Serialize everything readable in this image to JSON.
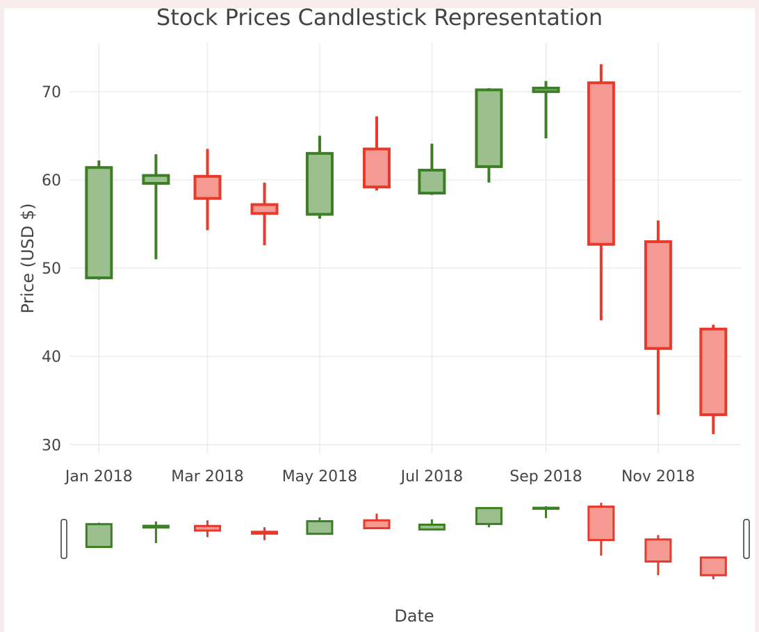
{
  "chart_data": {
    "type": "candlestick",
    "title": "Stock Prices Candlestick Representation",
    "xlabel": "Date",
    "ylabel": "Price (USD $)",
    "ylim": [
      29,
      75.5
    ],
    "yticks": [
      30,
      40,
      50,
      60,
      70
    ],
    "xlim": [
      "2017-12-16",
      "2018-12-16"
    ],
    "xticks": [
      {
        "date": "2018-01-01",
        "label": "Jan 2018"
      },
      {
        "date": "2018-03-01",
        "label": "Mar 2018"
      },
      {
        "date": "2018-05-01",
        "label": "May 2018"
      },
      {
        "date": "2018-07-01",
        "label": "Jul 2018"
      },
      {
        "date": "2018-09-01",
        "label": "Sep 2018"
      },
      {
        "date": "2018-11-01",
        "label": "Nov 2018"
      }
    ],
    "increasing_color": "#3d7f24",
    "increasing_fill": "#9bbf8f",
    "decreasing_color": "#e8392a",
    "decreasing_fill": "#f59a92",
    "rangeslider": true,
    "candles": [
      {
        "date": "2018-01-01",
        "open": 48.9,
        "high": 62.2,
        "low": 48.7,
        "close": 61.4
      },
      {
        "date": "2018-02-01",
        "open": 59.6,
        "high": 62.9,
        "low": 51.0,
        "close": 60.5
      },
      {
        "date": "2018-03-01",
        "open": 60.4,
        "high": 63.5,
        "low": 54.3,
        "close": 57.9
      },
      {
        "date": "2018-04-01",
        "open": 57.2,
        "high": 59.7,
        "low": 52.6,
        "close": 56.2
      },
      {
        "date": "2018-05-01",
        "open": 56.1,
        "high": 65.0,
        "low": 55.6,
        "close": 63.0
      },
      {
        "date": "2018-06-01",
        "open": 63.5,
        "high": 67.2,
        "low": 58.8,
        "close": 59.2
      },
      {
        "date": "2018-07-01",
        "open": 58.5,
        "high": 64.1,
        "low": 58.3,
        "close": 61.1
      },
      {
        "date": "2018-08-01",
        "open": 61.5,
        "high": 70.4,
        "low": 59.7,
        "close": 70.2
      },
      {
        "date": "2018-09-01",
        "open": 70.0,
        "high": 71.2,
        "low": 64.7,
        "close": 70.4
      },
      {
        "date": "2018-10-01",
        "open": 71.0,
        "high": 73.1,
        "low": 44.1,
        "close": 52.7
      },
      {
        "date": "2018-11-01",
        "open": 53.0,
        "high": 55.4,
        "low": 33.4,
        "close": 40.9
      },
      {
        "date": "2018-12-01",
        "open": 43.1,
        "high": 43.6,
        "low": 31.2,
        "close": 33.4
      }
    ]
  }
}
